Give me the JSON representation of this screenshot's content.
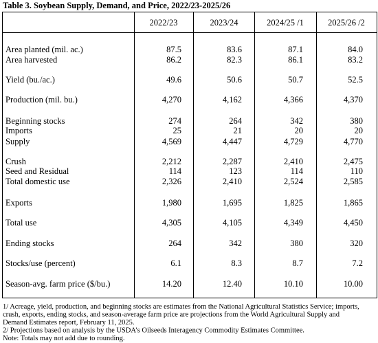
{
  "title": "Table 3.  Soybean Supply, Demand, and Price, 2022/23-2025/26",
  "table": {
    "columns": [
      "2022/23",
      "2023/24",
      "2024/25 /1",
      "2025/26 /2"
    ],
    "rows": [
      {
        "label": "Area planted (mil. ac.)",
        "values": [
          "87.5",
          "83.6",
          "87.1",
          "84.0"
        ]
      },
      {
        "label": "Area harvested",
        "values": [
          "86.2",
          "82.3",
          "86.1",
          "83.2"
        ]
      },
      {
        "label": "Yield (bu./ac.)",
        "values": [
          "49.6",
          "50.6",
          "50.7",
          "52.5"
        ]
      },
      {
        "label": "Production (mil. bu.)",
        "values": [
          "4,270",
          "4,162",
          "4,366",
          "4,370"
        ]
      },
      {
        "label": "Beginning stocks",
        "values": [
          "274",
          "264",
          "342",
          "380"
        ]
      },
      {
        "label": "Imports",
        "values": [
          "25",
          "21",
          "20",
          "20"
        ]
      },
      {
        "label": "Supply",
        "values": [
          "4,569",
          "4,447",
          "4,729",
          "4,770"
        ]
      },
      {
        "label": "Crush",
        "values": [
          "2,212",
          "2,287",
          "2,410",
          "2,475"
        ]
      },
      {
        "label": "Seed and Residual",
        "values": [
          "114",
          "123",
          "114",
          "110"
        ]
      },
      {
        "label": "Total domestic use",
        "values": [
          "2,326",
          "2,410",
          "2,524",
          "2,585"
        ]
      },
      {
        "label": "Exports",
        "values": [
          "1,980",
          "1,695",
          "1,825",
          "1,865"
        ]
      },
      {
        "label": "Total use",
        "values": [
          "4,305",
          "4,105",
          "4,349",
          "4,450"
        ]
      },
      {
        "label": "Ending stocks",
        "values": [
          "264",
          "342",
          "380",
          "320"
        ]
      },
      {
        "label": "Stocks/use (percent)",
        "values": [
          "6.1",
          "8.3",
          "8.7",
          "7.2"
        ]
      },
      {
        "label": "Season-avg. farm price ($/bu.)",
        "values": [
          "14.20",
          "12.40",
          "10.10",
          "10.00"
        ]
      }
    ]
  },
  "footnotes": [
    "1/ Acreage, yield, production, and beginning stocks are estimates from the National Agricultural Statistics Service; imports,",
    "crush, exports, ending stocks, and season-average farm price are projections from the World Agricultural Supply and",
    "Demand Estimates report, February 11, 2025.",
    "2/ Projections based on analysis by the USDA’s Oilseeds Interagency Commodity Estimates Committee.",
    "Note:  Totals may not add due to rounding."
  ]
}
